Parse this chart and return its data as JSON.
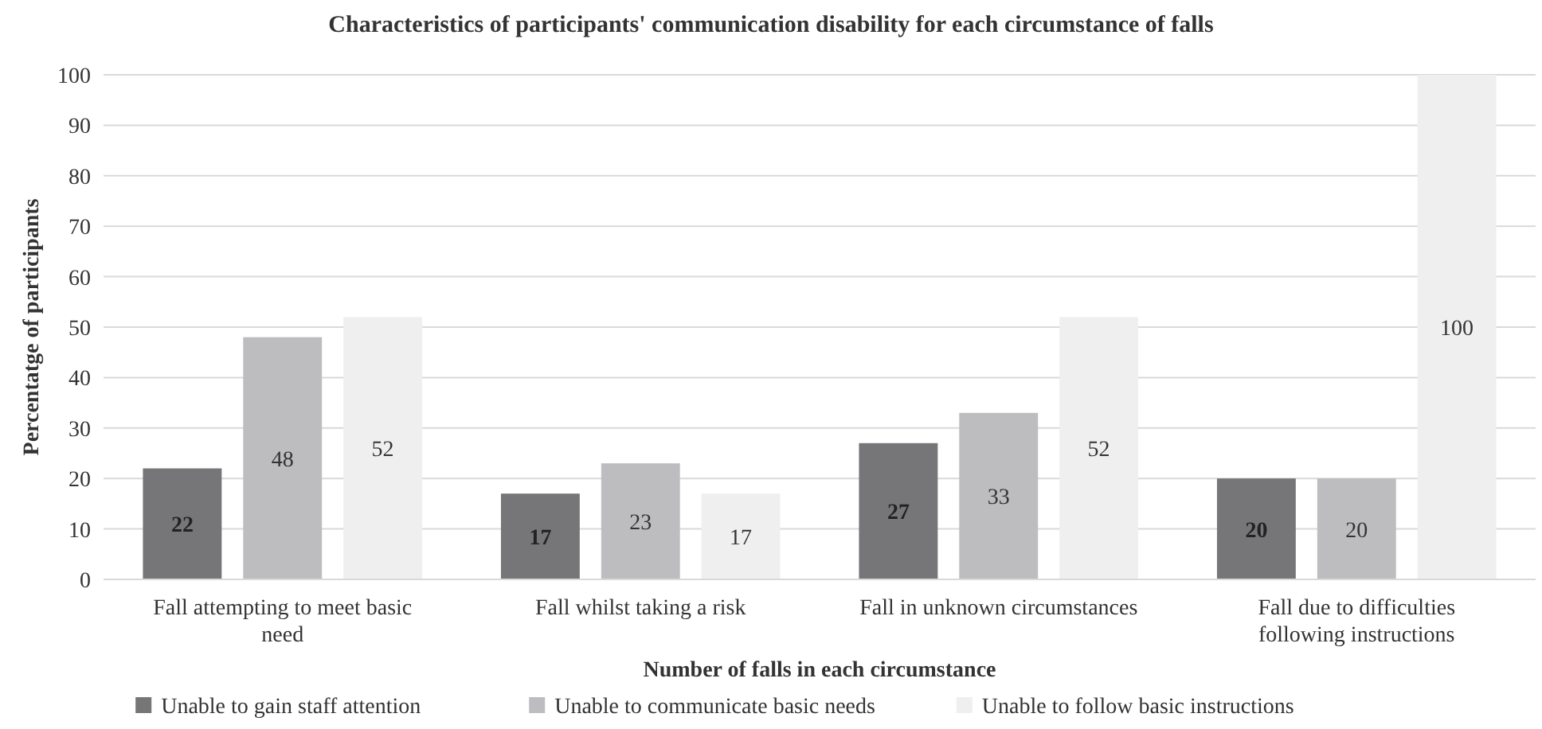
{
  "chart_data": {
    "type": "bar",
    "title": "Characteristics of participants' communication disability for each circumstance of falls",
    "xlabel": "Number of falls in each circumstance",
    "ylabel": "Percentatge of participants",
    "categories": [
      "Fall attempting to meet basic need",
      "Fall whilst taking a risk",
      "Fall in unknown circumstances",
      "Fall due to difficulties following instructions"
    ],
    "series": [
      {
        "name": "Unable to gain staff attention",
        "color": "#767679",
        "values": [
          22,
          17,
          27,
          20
        ]
      },
      {
        "name": "Unable to communicate basic needs",
        "color": "#bdbdbf",
        "values": [
          48,
          23,
          33,
          20
        ]
      },
      {
        "name": "Unable to follow basic instructions",
        "color": "#efefef",
        "values": [
          52,
          17,
          52,
          100
        ]
      }
    ],
    "ylim": [
      0,
      100
    ],
    "yticks": [
      0,
      10,
      20,
      30,
      40,
      50,
      60,
      70,
      80,
      90,
      100
    ],
    "grid": "y",
    "legend": "bottom",
    "data_labels": true
  }
}
